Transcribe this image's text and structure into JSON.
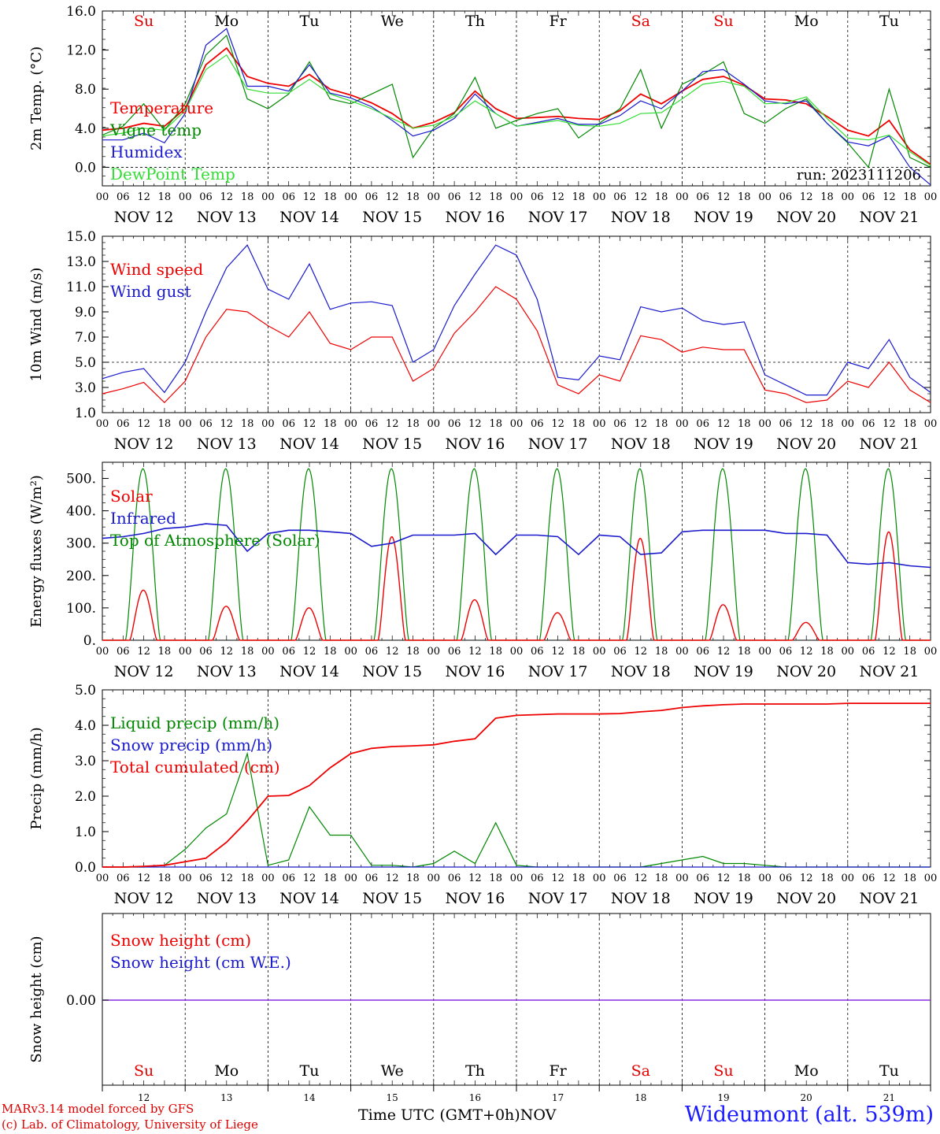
{
  "day_names": [
    {
      "label": "Su",
      "color": "#e00000"
    },
    {
      "label": "Mo",
      "color": "#000000"
    },
    {
      "label": "Tu",
      "color": "#000000"
    },
    {
      "label": "We",
      "color": "#000000"
    },
    {
      "label": "Th",
      "color": "#000000"
    },
    {
      "label": "Fr",
      "color": "#000000"
    },
    {
      "label": "Sa",
      "color": "#e00000"
    },
    {
      "label": "Su",
      "color": "#e00000"
    },
    {
      "label": "Mo",
      "color": "#000000"
    },
    {
      "label": "Tu",
      "color": "#000000"
    }
  ],
  "date_labels": [
    "NOV 12",
    "NOV 13",
    "NOV 14",
    "NOV 15",
    "NOV 16",
    "NOV 17",
    "NOV 18",
    "NOV 19",
    "NOV 20",
    "NOV 21"
  ],
  "hour_labels": [
    "00",
    "06",
    "12",
    "18"
  ],
  "bottom_day_numbers": [
    "12",
    "13",
    "14",
    "15",
    "16",
    "17",
    "18",
    "19",
    "20",
    "21"
  ],
  "footer": {
    "credit_line1": "MARv3.14 model forced by GFS",
    "credit_line2": "(c) Lab. of Climatology, University of Liege",
    "xaxis_title": "Time UTC (GMT+0h)",
    "month": "NOV",
    "station": "Wideumont (alt. 539m)"
  },
  "chart_data": [
    {
      "type": "line",
      "ylabel": "2m Temp. (°C)",
      "ylim": [
        -1.9,
        16.0
      ],
      "yticks": [
        "0.0",
        "4.0",
        "8.0",
        "12.0",
        "16.0"
      ],
      "ytick_values": [
        0,
        4,
        8,
        12,
        16
      ],
      "annotation": "run: 2023111206",
      "x_days": [
        0,
        0.25,
        0.5,
        0.75,
        1,
        1.25,
        1.5,
        1.75,
        2,
        2.25,
        2.5,
        2.75,
        3,
        3.25,
        3.5,
        3.75,
        4,
        4.25,
        4.5,
        4.75,
        5,
        5.25,
        5.5,
        5.75,
        6,
        6.25,
        6.5,
        6.75,
        7,
        7.25,
        7.5,
        7.75,
        8,
        8.25,
        8.5,
        8.75,
        9,
        9.25,
        9.5,
        9.75,
        10
      ],
      "series": [
        {
          "name": "Temperature",
          "color": "#ee0000",
          "values": [
            3.8,
            4.0,
            4.5,
            4.2,
            6.0,
            10.5,
            12.2,
            9.3,
            8.6,
            8.3,
            9.5,
            8.0,
            7.4,
            6.6,
            5.5,
            4.0,
            4.6,
            5.6,
            7.8,
            6.0,
            5.0,
            5.1,
            5.2,
            5.0,
            4.9,
            5.8,
            7.5,
            6.5,
            7.8,
            9.0,
            9.3,
            8.4,
            7.0,
            6.9,
            6.5,
            5.2,
            3.8,
            3.2,
            4.8,
            1.8,
            0.3
          ]
        },
        {
          "name": "Vigne temp",
          "color": "#008800",
          "values": [
            3.3,
            4.2,
            6.5,
            3.8,
            6.5,
            11.5,
            13.5,
            7.0,
            6.0,
            7.5,
            10.8,
            7.0,
            6.5,
            7.5,
            8.5,
            1.0,
            4.0,
            5.5,
            9.2,
            4.0,
            4.8,
            5.5,
            6.0,
            3.0,
            4.5,
            6.0,
            10.0,
            4.0,
            8.5,
            9.5,
            10.8,
            5.5,
            4.5,
            6.0,
            7.0,
            4.5,
            2.5,
            0.0,
            8.0,
            1.0,
            0.0
          ]
        },
        {
          "name": "Humidex",
          "color": "#1a1acc",
          "values": [
            2.8,
            2.8,
            3.5,
            2.5,
            5.5,
            12.5,
            14.2,
            8.3,
            8.3,
            7.8,
            10.5,
            7.6,
            7.1,
            6.2,
            4.8,
            3.2,
            3.8,
            5.0,
            7.5,
            5.5,
            4.2,
            4.6,
            5.0,
            4.4,
            4.4,
            5.3,
            6.8,
            6.0,
            7.8,
            9.8,
            10.0,
            8.5,
            6.8,
            6.5,
            6.8,
            4.5,
            2.6,
            2.2,
            3.2,
            0.0,
            -1.8
          ]
        },
        {
          "name": "DewPoint Temp",
          "color": "#33dd33",
          "values": [
            3.2,
            3.5,
            4.0,
            3.8,
            5.8,
            10.0,
            11.5,
            8.0,
            7.6,
            7.6,
            9.0,
            7.5,
            6.8,
            6.0,
            5.0,
            4.0,
            4.3,
            5.2,
            6.8,
            5.5,
            4.2,
            4.5,
            4.8,
            4.3,
            4.2,
            4.5,
            5.5,
            5.6,
            7.0,
            8.5,
            8.8,
            8.3,
            6.5,
            6.6,
            7.2,
            5.0,
            3.0,
            2.8,
            3.3,
            1.6,
            0.2
          ]
        }
      ]
    },
    {
      "type": "line",
      "ylabel": "10m Wind (m/s)",
      "ylim": [
        1.0,
        15.0
      ],
      "yticks": [
        "1.0",
        "3.0",
        "5.0",
        "7.0",
        "9.0",
        "11.0",
        "13.0",
        "15.0"
      ],
      "ytick_values": [
        1,
        3,
        5,
        7,
        9,
        11,
        13,
        15
      ],
      "reference_line": 5.0,
      "x_days": [
        0,
        0.25,
        0.5,
        0.75,
        1,
        1.25,
        1.5,
        1.75,
        2,
        2.25,
        2.5,
        2.75,
        3,
        3.25,
        3.5,
        3.75,
        4,
        4.25,
        4.5,
        4.75,
        5,
        5.25,
        5.5,
        5.75,
        6,
        6.25,
        6.5,
        6.75,
        7,
        7.25,
        7.5,
        7.75,
        8,
        8.25,
        8.5,
        8.75,
        9,
        9.25,
        9.5,
        9.75,
        10
      ],
      "series": [
        {
          "name": "Wind speed",
          "color": "#ee0000",
          "values": [
            2.5,
            2.9,
            3.4,
            1.8,
            3.5,
            7.0,
            9.2,
            9.0,
            7.9,
            7.0,
            9.0,
            6.5,
            6.0,
            7.0,
            7.0,
            3.5,
            4.5,
            7.3,
            9.0,
            11.0,
            10.0,
            7.5,
            3.2,
            2.5,
            4.0,
            3.5,
            7.1,
            6.8,
            5.8,
            6.2,
            6.0,
            6.0,
            2.8,
            2.5,
            1.8,
            2.0,
            3.5,
            3.0,
            5.0,
            2.8,
            1.8
          ]
        },
        {
          "name": "Wind gust",
          "color": "#1a1acc",
          "values": [
            3.7,
            4.2,
            4.5,
            2.6,
            5.0,
            9.0,
            12.5,
            14.3,
            10.8,
            10.0,
            12.8,
            9.2,
            9.7,
            9.8,
            9.5,
            5.0,
            6.0,
            9.5,
            12.0,
            14.3,
            13.5,
            10.0,
            3.8,
            3.6,
            5.5,
            5.2,
            9.4,
            9.0,
            9.3,
            8.3,
            8.0,
            8.2,
            4.0,
            3.2,
            2.4,
            2.4,
            5.0,
            4.5,
            6.8,
            3.8,
            2.6
          ]
        }
      ]
    },
    {
      "type": "line",
      "ylabel": "Energy fluxes (W/m²)",
      "ylim": [
        0,
        550
      ],
      "yticks": [
        "0.",
        "100.",
        "200.",
        "300.",
        "400.",
        "500."
      ],
      "ytick_values": [
        0,
        100,
        200,
        300,
        400,
        500
      ],
      "x_days": [
        0,
        0.25,
        0.5,
        0.75,
        1,
        1.25,
        1.5,
        1.75,
        2,
        2.25,
        2.5,
        2.75,
        3,
        3.25,
        3.5,
        3.75,
        4,
        4.25,
        4.5,
        4.75,
        5,
        5.25,
        5.5,
        5.75,
        6,
        6.25,
        6.5,
        6.75,
        7,
        7.25,
        7.5,
        7.75,
        8,
        8.25,
        8.5,
        8.75,
        9,
        9.25,
        9.5,
        9.75,
        10
      ],
      "series": [
        {
          "name": "Solar",
          "color": "#ee0000",
          "solar_peaks": [
            155,
            105,
            100,
            320,
            125,
            85,
            315,
            110,
            55,
            335
          ]
        },
        {
          "name": "Infrared",
          "color": "#1a1acc",
          "values": [
            315,
            320,
            330,
            345,
            350,
            360,
            355,
            275,
            330,
            340,
            340,
            335,
            330,
            290,
            300,
            325,
            325,
            325,
            330,
            265,
            325,
            325,
            320,
            265,
            325,
            320,
            265,
            270,
            335,
            340,
            340,
            340,
            340,
            330,
            330,
            325,
            240,
            235,
            240,
            230,
            225
          ]
        },
        {
          "name": "Top of Atmosphere (Solar)",
          "color": "#008800",
          "toa_peak": 530
        }
      ]
    },
    {
      "type": "line",
      "ylabel": "Precip (mm/h)",
      "ylim": [
        0,
        5.0
      ],
      "yticks": [
        "0.0",
        "1.0",
        "2.0",
        "3.0",
        "4.0",
        "5.0"
      ],
      "ytick_values": [
        0,
        1,
        2,
        3,
        4,
        5
      ],
      "x_days": [
        0,
        0.25,
        0.5,
        0.75,
        1,
        1.25,
        1.5,
        1.75,
        2,
        2.25,
        2.5,
        2.75,
        3,
        3.25,
        3.5,
        3.75,
        4,
        4.25,
        4.5,
        4.75,
        5,
        5.25,
        5.5,
        5.75,
        6,
        6.25,
        6.5,
        6.75,
        7,
        7.25,
        7.5,
        7.75,
        8,
        8.25,
        8.5,
        8.75,
        9,
        9.25,
        9.5,
        9.75,
        10
      ],
      "series": [
        {
          "name": "Liquid precip (mm/h)",
          "color": "#008800",
          "values": [
            0,
            0,
            0,
            0.05,
            0.5,
            1.1,
            1.5,
            3.2,
            0.05,
            0.2,
            1.7,
            0.9,
            0.9,
            0.05,
            0.05,
            0.0,
            0.1,
            0.45,
            0.1,
            1.25,
            0.05,
            0.0,
            0.0,
            0.0,
            0.0,
            0.0,
            0.0,
            0.1,
            0.2,
            0.3,
            0.1,
            0.1,
            0.05,
            0.0,
            0.0,
            0.0,
            0.0,
            0.0,
            0.0,
            0.0,
            0.0
          ]
        },
        {
          "name": "Snow precip (mm/h)",
          "color": "#1a1acc",
          "values": [
            0,
            0,
            0,
            0,
            0,
            0,
            0,
            0,
            0,
            0,
            0,
            0,
            0,
            0,
            0,
            0,
            0,
            0,
            0,
            0,
            0,
            0,
            0,
            0,
            0,
            0,
            0,
            0,
            0,
            0,
            0,
            0,
            0,
            0,
            0,
            0,
            0,
            0,
            0,
            0,
            0
          ]
        },
        {
          "name": "Total cumulated (cm)",
          "color": "#ee0000",
          "values": [
            0,
            0,
            0.02,
            0.05,
            0.15,
            0.25,
            0.7,
            1.3,
            2.0,
            2.02,
            2.3,
            2.8,
            3.2,
            3.35,
            3.4,
            3.42,
            3.45,
            3.55,
            3.62,
            4.2,
            4.28,
            4.3,
            4.32,
            4.32,
            4.32,
            4.33,
            4.38,
            4.42,
            4.5,
            4.55,
            4.58,
            4.6,
            4.6,
            4.6,
            4.6,
            4.6,
            4.62,
            4.62,
            4.62,
            4.62,
            4.62
          ]
        }
      ]
    },
    {
      "type": "line",
      "ylabel": "Snow height (cm)",
      "yticks": [
        "0.00"
      ],
      "ytick_values": [
        0
      ],
      "series": [
        {
          "name": "Snow height (cm)",
          "color": "#ee0000",
          "values": [
            0
          ]
        },
        {
          "name": "Snow height (cm W.E.)",
          "color": "#1a1acc",
          "values": [
            0
          ]
        }
      ]
    }
  ]
}
